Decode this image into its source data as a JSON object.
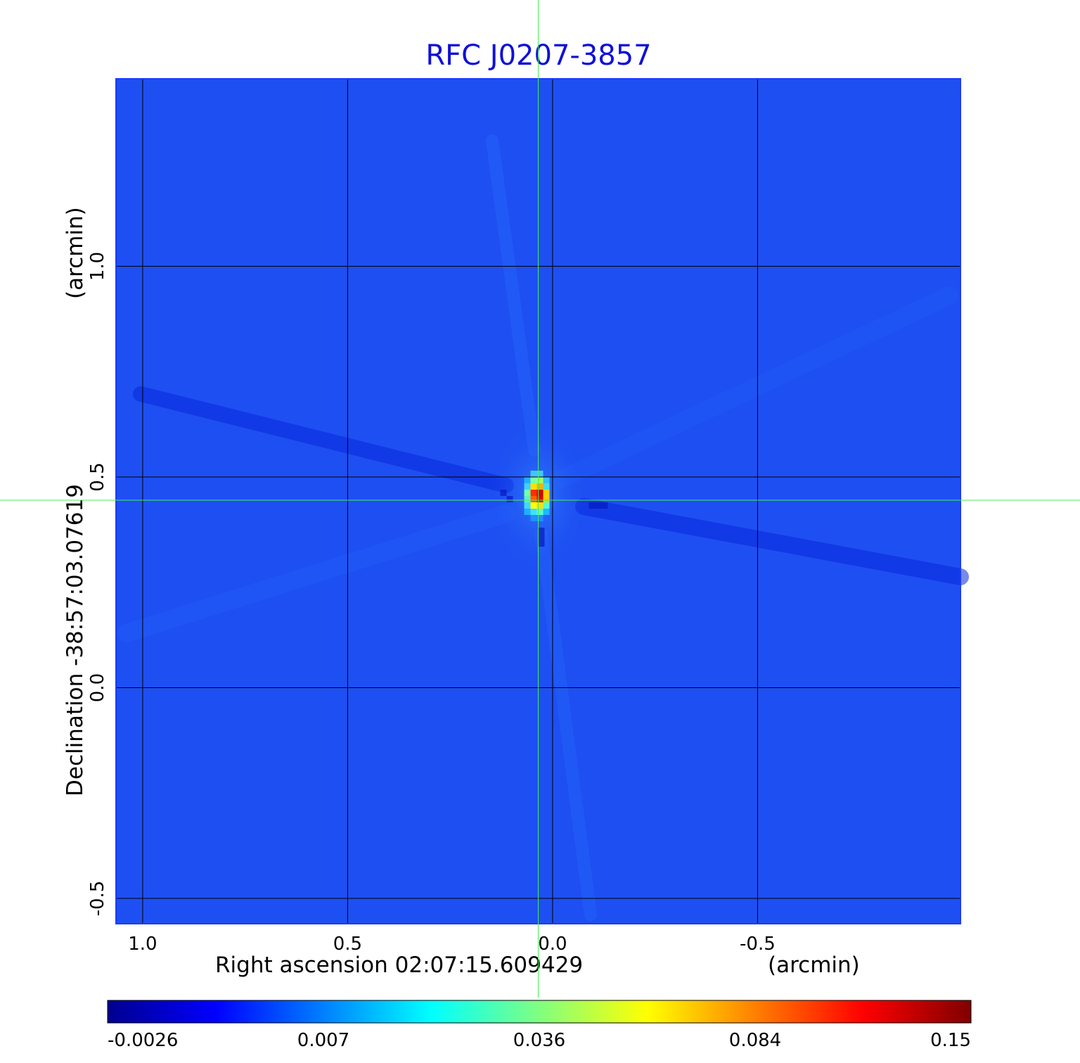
{
  "chart_data": {
    "type": "heatmap",
    "title": "RFC J0207-3857",
    "xlabel": "Right ascension  02:07:15.609429",
    "xunit": "(arcmin)",
    "ylabel": "Declination  -38:57:03.07619",
    "yunit": "(arcmin)",
    "xlim": [
      1.065,
      -0.995
    ],
    "ylim": [
      -0.56,
      1.445
    ],
    "x_ticks": [
      1.0,
      0.5,
      0.0,
      -0.5
    ],
    "x_tick_labels": [
      "1.0",
      "0.5",
      "0.0",
      "-0.5"
    ],
    "y_ticks": [
      1.0,
      0.5,
      0.0,
      -0.5
    ],
    "y_tick_labels": [
      "1.0",
      "0.5",
      "0.0",
      "-0.5"
    ],
    "grid": true,
    "crosshair": {
      "ra_offset_arcmin": 0.035,
      "dec_offset_arcmin": 0.445
    },
    "peak": {
      "ra_offset_arcmin": 0.035,
      "dec_offset_arcmin": 0.455,
      "value": 0.15
    },
    "background_level": 0.0,
    "colorbar": {
      "colormap": "jet",
      "placement": "bottom",
      "tick_labels": [
        "-0.0026",
        "0.007",
        "0.036",
        "0.084",
        "0.15"
      ]
    }
  },
  "colors": {
    "title": "#1010d8",
    "crosshair": "#44ee55",
    "grid": "#000000",
    "frame": "#1a3cff"
  }
}
